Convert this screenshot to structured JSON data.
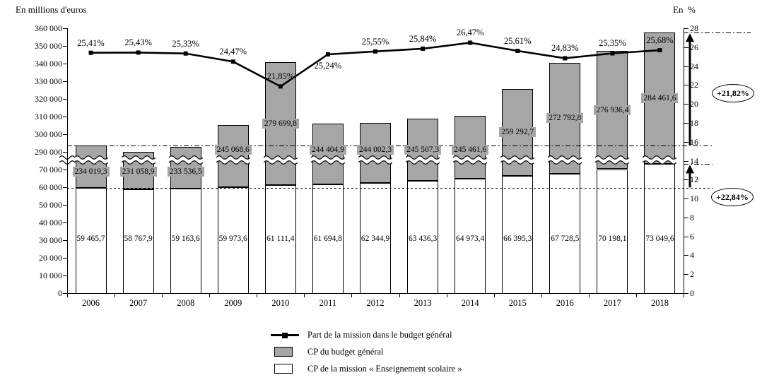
{
  "axis_titles": {
    "left": "En millions d'euros",
    "right": "En  %"
  },
  "chart_data": {
    "type": "bar",
    "subtype": "stacked-bar-with-line-broken-axis",
    "categories": [
      "2006",
      "2007",
      "2008",
      "2009",
      "2010",
      "2011",
      "2012",
      "2013",
      "2014",
      "2015",
      "2016",
      "2017",
      "2018"
    ],
    "series": [
      {
        "name": "CP de la mission « Enseignement scolaire »",
        "role": "bar-bottom-white",
        "values": [
          59465.7,
          58767.9,
          59163.6,
          59973.6,
          61111.4,
          61694.8,
          62344.9,
          63436.3,
          64973.4,
          66395.3,
          67728.5,
          70198.1,
          73049.6
        ],
        "labels": [
          "59 465,7",
          "58 767,9",
          "59 163,6",
          "59 973,6",
          "61 111,4",
          "61 694,8",
          "62 344,9",
          "63 436,3",
          "64 973,4",
          "66 395,3",
          "67 728,5",
          "70 198,1",
          "73 049,6"
        ]
      },
      {
        "name": "CP du budget général",
        "role": "bar-top-gray-stacked",
        "values": [
          234019.3,
          231058.9,
          233536.5,
          245068.6,
          279699.8,
          244404.9,
          244002.3,
          245507.3,
          245461.6,
          259292.7,
          272792.8,
          276936.4,
          284461.6
        ],
        "labels": [
          "234 019,3",
          "231 058,9",
          "233 536,5",
          "245 068,6",
          "279 699,8",
          "244 404,9",
          "244 002,3",
          "245 507,3",
          "245 461,6",
          "259 292,7",
          "272 792,8",
          "276 936,4",
          "284 461,6"
        ]
      },
      {
        "name": "Part de la mission dans le budget général",
        "role": "line",
        "values": [
          25.41,
          25.43,
          25.33,
          24.47,
          21.85,
          25.24,
          25.55,
          25.84,
          26.47,
          25.61,
          24.83,
          25.35,
          25.68
        ],
        "labels": [
          "25,41%",
          "25,43%",
          "25,33%",
          "24,47%",
          "21,85%",
          "25,24%",
          "25,55%",
          "25,84%",
          "26,47%",
          "25,61%",
          "24,83%",
          "25,35%",
          "25,68%"
        ],
        "label_below": [
          false,
          false,
          false,
          false,
          false,
          true,
          false,
          false,
          false,
          false,
          false,
          false,
          false
        ]
      }
    ],
    "left_axis": {
      "title": "En millions d'euros",
      "upper_ticks": [
        "360 000",
        "350 000",
        "340 000",
        "330 000",
        "320 000",
        "310 000",
        "300 000",
        "290 000"
      ],
      "lower_ticks": [
        "70 000",
        "60 000",
        "50 000",
        "40 000",
        "30 000",
        "20 000",
        "10 000",
        "0"
      ],
      "break_between": [
        70000,
        290000
      ]
    },
    "right_axis": {
      "title": "En  %",
      "ticks": [
        "28",
        "26",
        "24",
        "22",
        "20",
        "18",
        "16",
        "14",
        "12",
        "10",
        "8",
        "6",
        "4",
        "2",
        "0"
      ],
      "max": 28
    },
    "annotations": [
      {
        "text": "+21,82%"
      },
      {
        "text": "+22,84%"
      }
    ],
    "legend": [
      {
        "label": "Part de la mission dans le budget général",
        "marker": "line-square"
      },
      {
        "label": "CP du budget général",
        "marker": "gray-box"
      },
      {
        "label": "CP de la mission « Enseignement scolaire »",
        "marker": "white-box"
      }
    ],
    "colors": {
      "bar_gray": "#a6a6a6",
      "bar_white": "#ffffff",
      "line": "#000000"
    }
  }
}
